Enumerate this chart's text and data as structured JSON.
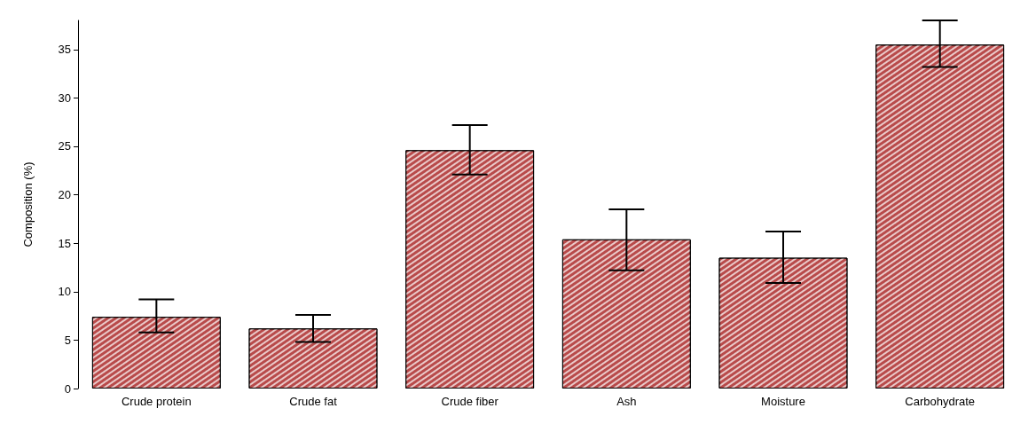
{
  "chart_data": {
    "type": "bar",
    "ylabel": "Composition (%)",
    "categories": [
      "Crude protein",
      "Crude fat",
      "Crude fiber",
      "Ash",
      "Moisture",
      "Carbohydrate"
    ],
    "values": [
      7.4,
      6.2,
      24.6,
      15.4,
      13.5,
      35.5
    ],
    "errors": [
      [
        5.8,
        9.2
      ],
      [
        4.8,
        7.6
      ],
      [
        22.1,
        27.2
      ],
      [
        12.2,
        18.5
      ],
      [
        10.9,
        16.2
      ],
      [
        33.2,
        38.0
      ]
    ],
    "color": "#b84a4a",
    "ylim": [
      0,
      38
    ],
    "yticks": [
      0,
      5,
      10,
      15,
      20,
      25,
      30,
      35
    ],
    "grid": false
  }
}
